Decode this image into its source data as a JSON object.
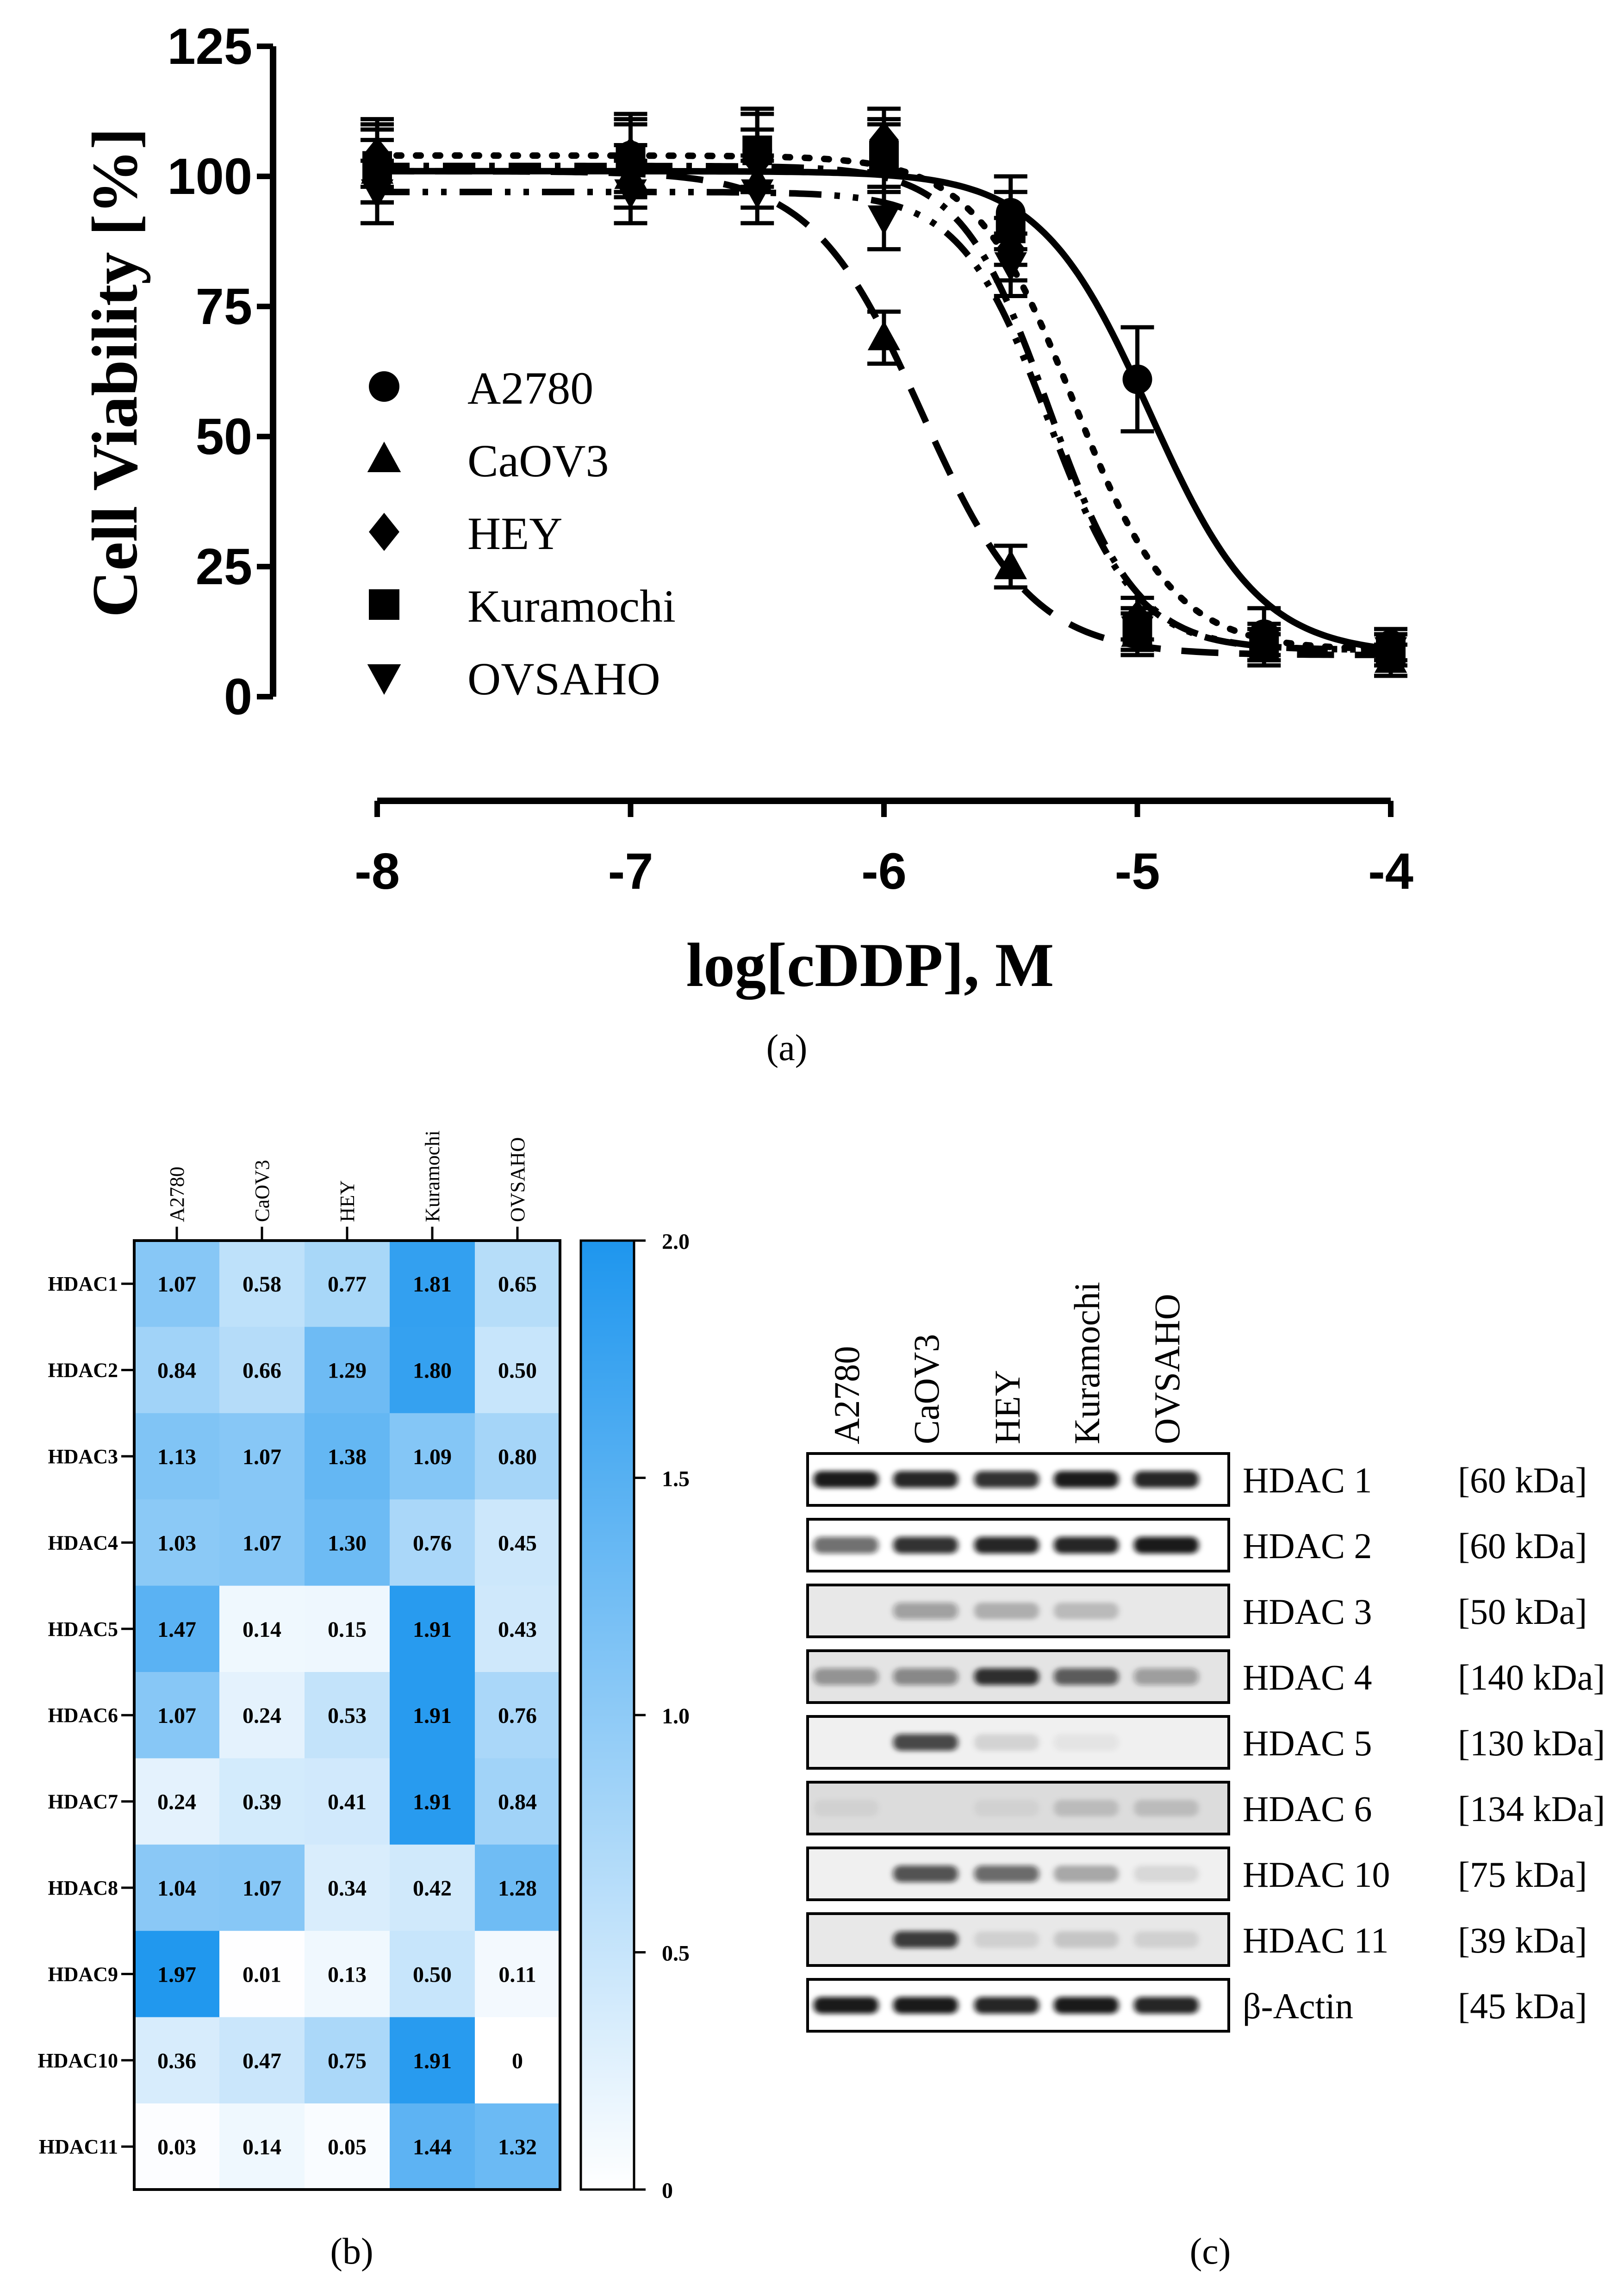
{
  "chart_data": [
    {
      "type": "line",
      "title": "",
      "panel_label": "(a)",
      "xlabel": "log[cDDP], M",
      "ylabel": "Cell Viability [%]",
      "xlim": [
        -8,
        -4
      ],
      "ylim": [
        0,
        125
      ],
      "xticks": [
        "-8",
        "-7",
        "-6",
        "-5",
        "-4"
      ],
      "yticks": [
        "0",
        "25",
        "50",
        "75",
        "100",
        "125"
      ],
      "legend_position": "center-left",
      "series": [
        {
          "name": "A2780",
          "marker": "circle",
          "linestyle": "solid",
          "fit": {
            "top": 101,
            "bottom": 8,
            "logIC50": -4.95,
            "hill": 2.0
          },
          "x": [
            -8,
            -7,
            -6.5,
            -6,
            -5.5,
            -5,
            -4.5,
            -4
          ],
          "y": [
            103,
            104,
            105,
            104,
            93,
            61,
            12,
            10
          ],
          "err": [
            8,
            8,
            8,
            7,
            7,
            10,
            5,
            3
          ]
        },
        {
          "name": "CaOV3",
          "marker": "triangle-up",
          "linestyle": "dashed",
          "fit": {
            "top": 101,
            "bottom": 8,
            "logIC50": -5.85,
            "hill": 2.0
          },
          "x": [
            -8,
            -7,
            -6.5,
            -6,
            -5.5,
            -5,
            -4.5,
            -4
          ],
          "y": [
            101,
            100,
            99,
            69,
            25,
            12,
            9,
            7
          ],
          "err": [
            6,
            6,
            5,
            5,
            4,
            4,
            3,
            3
          ]
        },
        {
          "name": "HEY",
          "marker": "diamond",
          "linestyle": "dotted",
          "fit": {
            "top": 104,
            "bottom": 9,
            "logIC50": -5.25,
            "hill": 2.2
          },
          "x": [
            -8,
            -7,
            -6.5,
            -6,
            -5.5,
            -5,
            -4.5,
            -4
          ],
          "y": [
            104,
            104,
            103,
            107,
            86,
            15,
            11,
            9
          ],
          "err": [
            6,
            7,
            6,
            6,
            6,
            4,
            3,
            3
          ]
        },
        {
          "name": "Kuramochi",
          "marker": "square",
          "linestyle": "dash-dot",
          "fit": {
            "top": 102,
            "bottom": 9,
            "logIC50": -5.35,
            "hill": 2.5
          },
          "x": [
            -8,
            -7,
            -6.5,
            -6,
            -5.5,
            -5,
            -4.5,
            -4
          ],
          "y": [
            102,
            103,
            105,
            104,
            90,
            13,
            10,
            9
          ],
          "err": [
            7,
            7,
            7,
            6,
            7,
            4,
            3,
            3
          ]
        },
        {
          "name": "OVSAHO",
          "marker": "triangle-down",
          "linestyle": "dash-dot-dot",
          "fit": {
            "top": 97,
            "bottom": 9,
            "logIC50": -5.35,
            "hill": 2.5
          },
          "x": [
            -8,
            -7,
            -6.5,
            -6,
            -5.5,
            -5,
            -4.5,
            -4
          ],
          "y": [
            97,
            97,
            97,
            92,
            83,
            13,
            10,
            9
          ],
          "err": [
            6,
            6,
            6,
            6,
            6,
            4,
            3,
            3
          ]
        }
      ]
    },
    {
      "type": "heatmap",
      "panel_label": "(b)",
      "columns": [
        "A2780",
        "CaOV3",
        "HEY",
        "Kuramochi",
        "OVSAHO"
      ],
      "rows": [
        "HDAC1",
        "HDAC2",
        "HDAC3",
        "HDAC4",
        "HDAC5",
        "HDAC6",
        "HDAC7",
        "HDAC8",
        "HDAC9",
        "HDAC10",
        "HDAC11"
      ],
      "values": [
        [
          "1.07",
          "0.58",
          "0.77",
          "1.81",
          "0.65"
        ],
        [
          "0.84",
          "0.66",
          "1.29",
          "1.80",
          "0.50"
        ],
        [
          "1.13",
          "1.07",
          "1.38",
          "1.09",
          "0.80"
        ],
        [
          "1.03",
          "1.07",
          "1.30",
          "0.76",
          "0.45"
        ],
        [
          "1.47",
          "0.14",
          "0.15",
          "1.91",
          "0.43"
        ],
        [
          "1.07",
          "0.24",
          "0.53",
          "1.91",
          "0.76"
        ],
        [
          "0.24",
          "0.39",
          "0.41",
          "1.91",
          "0.84"
        ],
        [
          "1.04",
          "1.07",
          "0.34",
          "0.42",
          "1.28"
        ],
        [
          "1.97",
          "0.01",
          "0.13",
          "0.50",
          "0.11"
        ],
        [
          "0.36",
          "0.47",
          "0.75",
          "1.91",
          "0"
        ],
        [
          "0.03",
          "0.14",
          "0.05",
          "1.44",
          "1.32"
        ]
      ],
      "colorbar": {
        "min": 0,
        "max": 2.0,
        "ticks": [
          "0",
          "0.5",
          "1.0",
          "1.5",
          "2.0"
        ],
        "low_color": "#ffffff",
        "high_color": "#1e96ee"
      }
    },
    {
      "type": "table",
      "panel_label": "(c)",
      "columns": [
        "A2780",
        "CaOV3",
        "HEY",
        "Kuramochi",
        "OVSAHO"
      ],
      "blots": [
        {
          "name": "HDAC 1",
          "size": "[60 kDa]",
          "background": "#ffffff",
          "band_intensity": [
            0.95,
            0.9,
            0.85,
            0.95,
            0.9
          ]
        },
        {
          "name": "HDAC 2",
          "size": "[60 kDa]",
          "background": "#ffffff",
          "band_intensity": [
            0.6,
            0.85,
            0.9,
            0.9,
            0.95
          ]
        },
        {
          "name": "HDAC 3",
          "size": "[50 kDa]",
          "background": "#e8e8e8",
          "band_intensity": [
            0.0,
            0.35,
            0.25,
            0.2,
            0.0
          ]
        },
        {
          "name": "HDAC 4",
          "size": "[140 kDa]",
          "background": "#e4e4e4",
          "band_intensity": [
            0.4,
            0.45,
            0.85,
            0.65,
            0.35
          ]
        },
        {
          "name": "HDAC 5",
          "size": "[130 kDa]",
          "background": "#f0f0f0",
          "band_intensity": [
            0.0,
            0.75,
            0.12,
            0.05,
            0.0
          ]
        },
        {
          "name": "HDAC 6",
          "size": "[134 kDa]",
          "background": "#dcdcdc",
          "band_intensity": [
            0.05,
            0.0,
            0.05,
            0.15,
            0.15
          ]
        },
        {
          "name": "HDAC 10",
          "size": "[75 kDa]",
          "background": "#f0f0f0",
          "band_intensity": [
            0.0,
            0.7,
            0.6,
            0.3,
            0.1
          ]
        },
        {
          "name": "HDAC 11",
          "size": "[39 kDa]",
          "background": "#e8e8e8",
          "band_intensity": [
            0.0,
            0.8,
            0.1,
            0.15,
            0.1
          ]
        },
        {
          "name": "β-Actin",
          "size": "[45 kDa]",
          "background": "#ffffff",
          "band_intensity": [
            0.95,
            0.95,
            0.9,
            0.95,
            0.9
          ]
        }
      ]
    }
  ]
}
